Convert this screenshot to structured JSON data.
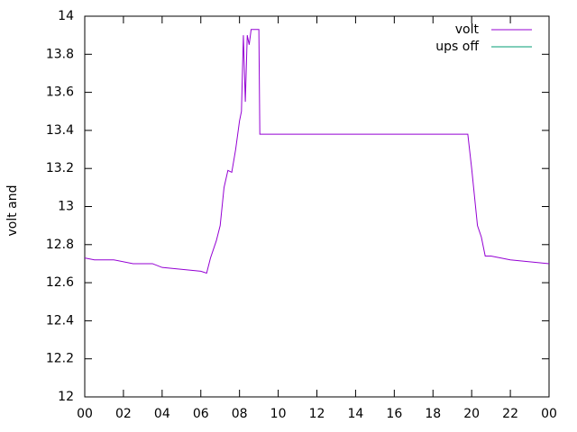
{
  "chart_data": {
    "type": "line",
    "y_label": "volt and",
    "x": [
      0,
      0.5,
      1.5,
      2.5,
      3.5,
      4,
      5,
      6,
      6.3,
      6.5,
      6.8,
      7.0,
      7.2,
      7.4,
      7.6,
      7.8,
      8.0,
      8.1,
      8.2,
      8.3,
      8.4,
      8.5,
      8.6,
      9.0,
      9.05,
      10,
      12,
      14,
      16,
      18,
      19.4,
      19.8,
      20.0,
      20.3,
      20.5,
      20.7,
      21,
      22,
      23,
      24
    ],
    "series": [
      {
        "name": "volt",
        "color": "#9400d3",
        "values": [
          12.73,
          12.72,
          12.72,
          12.7,
          12.7,
          12.68,
          12.67,
          12.66,
          12.65,
          12.73,
          12.82,
          12.9,
          13.1,
          13.19,
          13.18,
          13.3,
          13.45,
          13.5,
          13.9,
          13.55,
          13.9,
          13.85,
          13.93,
          13.93,
          13.38,
          13.38,
          13.38,
          13.38,
          13.38,
          13.38,
          13.38,
          13.38,
          13.2,
          12.9,
          12.84,
          12.74,
          12.74,
          12.72,
          12.71,
          12.7
        ]
      },
      {
        "name": "ups off",
        "color": "#009e73",
        "values": [
          null,
          null,
          null,
          null,
          null,
          null,
          null,
          null,
          null,
          null,
          null,
          null,
          null,
          null,
          null,
          null,
          null,
          null,
          null,
          null,
          null,
          null,
          null,
          null,
          null,
          null,
          null,
          null,
          null,
          null,
          null,
          null,
          null,
          null,
          null,
          null,
          null,
          null,
          null,
          null
        ]
      }
    ],
    "xlim": [
      0,
      24
    ],
    "xticks": [
      {
        "value": 0,
        "label": "00"
      },
      {
        "value": 2,
        "label": "02"
      },
      {
        "value": 4,
        "label": "04"
      },
      {
        "value": 6,
        "label": "06"
      },
      {
        "value": 8,
        "label": "08"
      },
      10,
      12,
      14,
      16,
      18,
      20,
      22,
      {
        "value": 24,
        "label": "00"
      }
    ],
    "ylim": [
      12,
      14
    ],
    "yticks": [
      12,
      12.2,
      12.4,
      12.6,
      12.8,
      13,
      13.2,
      13.4,
      13.6,
      13.8,
      14
    ],
    "legend": "top-right",
    "grid": false
  }
}
